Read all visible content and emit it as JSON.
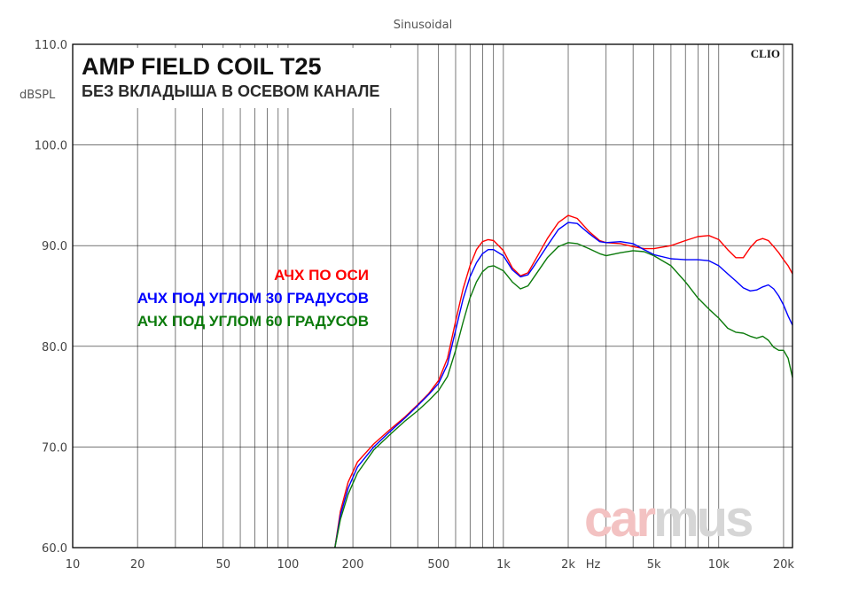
{
  "header": {
    "title": "Sinusoidal"
  },
  "overlay": {
    "title": "AMP FIELD COIL T25",
    "subtitle": "БЕЗ ВКЛАДЫША В ОСЕВОМ КАНАЛЕ",
    "brand_tag": "CLIO",
    "watermark_a": "car",
    "watermark_b": "mus",
    "watermark_colors": [
      "#f3c2c2",
      "#d6d6d6"
    ]
  },
  "chart_data": {
    "type": "line",
    "xscale": "log",
    "xlim": [
      10,
      22000
    ],
    "ylim": [
      60,
      110
    ],
    "ylabel": "dBSPL",
    "xlabel": "Hz",
    "grid": true,
    "legend_position": "center-left",
    "x_ticks": [
      {
        "v": 10,
        "label": "10"
      },
      {
        "v": 20,
        "label": "20"
      },
      {
        "v": 50,
        "label": "50"
      },
      {
        "v": 100,
        "label": "100"
      },
      {
        "v": 200,
        "label": "200"
      },
      {
        "v": 500,
        "label": "500"
      },
      {
        "v": 1000,
        "label": "1k"
      },
      {
        "v": 2000,
        "label": "2k"
      },
      {
        "v": 5000,
        "label": "5k"
      },
      {
        "v": 10000,
        "label": "10k"
      },
      {
        "v": 20000,
        "label": "20k"
      }
    ],
    "y_ticks": [
      {
        "v": 60,
        "label": "60.0"
      },
      {
        "v": 70,
        "label": "70.0"
      },
      {
        "v": 80,
        "label": "80.0"
      },
      {
        "v": 90,
        "label": "90.0"
      },
      {
        "v": 100,
        "label": "100.0"
      },
      {
        "v": 110,
        "label": "110.0"
      }
    ],
    "series": [
      {
        "name": "АЧХ ПО ОСИ",
        "color": "#ff0000",
        "points": [
          [
            165,
            60
          ],
          [
            175,
            63.6
          ],
          [
            190,
            66.5
          ],
          [
            210,
            68.5
          ],
          [
            250,
            70.3
          ],
          [
            300,
            71.8
          ],
          [
            350,
            73
          ],
          [
            400,
            74.2
          ],
          [
            450,
            75.3
          ],
          [
            500,
            76.6
          ],
          [
            550,
            78.8
          ],
          [
            600,
            82.5
          ],
          [
            650,
            85.7
          ],
          [
            700,
            88
          ],
          [
            750,
            89.6
          ],
          [
            800,
            90.4
          ],
          [
            850,
            90.6
          ],
          [
            900,
            90.5
          ],
          [
            1000,
            89.5
          ],
          [
            1100,
            87.8
          ],
          [
            1200,
            87
          ],
          [
            1300,
            87.3
          ],
          [
            1400,
            88.5
          ],
          [
            1600,
            90.7
          ],
          [
            1800,
            92.3
          ],
          [
            2000,
            93
          ],
          [
            2200,
            92.7
          ],
          [
            2500,
            91.4
          ],
          [
            2800,
            90.5
          ],
          [
            3000,
            90.3
          ],
          [
            3500,
            90.2
          ],
          [
            4000,
            89.9
          ],
          [
            4500,
            89.7
          ],
          [
            5000,
            89.7
          ],
          [
            6000,
            90
          ],
          [
            7000,
            90.5
          ],
          [
            8000,
            90.9
          ],
          [
            9000,
            91
          ],
          [
            10000,
            90.6
          ],
          [
            11000,
            89.6
          ],
          [
            12000,
            88.8
          ],
          [
            13000,
            88.8
          ],
          [
            14000,
            89.8
          ],
          [
            15000,
            90.5
          ],
          [
            16000,
            90.7
          ],
          [
            17000,
            90.5
          ],
          [
            18000,
            89.9
          ],
          [
            19000,
            89.3
          ],
          [
            20000,
            88.6
          ],
          [
            21000,
            88
          ],
          [
            22000,
            87.2
          ]
        ]
      },
      {
        "name": "АЧХ ПОД УГЛОМ 30 ГРАДУСОВ",
        "color": "#0000ff",
        "points": [
          [
            165,
            60
          ],
          [
            175,
            63.2
          ],
          [
            190,
            65.9
          ],
          [
            210,
            68
          ],
          [
            250,
            70
          ],
          [
            300,
            71.6
          ],
          [
            350,
            72.9
          ],
          [
            400,
            74.1
          ],
          [
            450,
            75.2
          ],
          [
            500,
            76.3
          ],
          [
            550,
            78.2
          ],
          [
            600,
            81.6
          ],
          [
            650,
            84.7
          ],
          [
            700,
            86.9
          ],
          [
            750,
            88.3
          ],
          [
            800,
            89.2
          ],
          [
            850,
            89.6
          ],
          [
            900,
            89.6
          ],
          [
            1000,
            89
          ],
          [
            1100,
            87.6
          ],
          [
            1200,
            86.9
          ],
          [
            1300,
            87.1
          ],
          [
            1400,
            88.1
          ],
          [
            1600,
            90
          ],
          [
            1800,
            91.6
          ],
          [
            2000,
            92.3
          ],
          [
            2200,
            92.2
          ],
          [
            2500,
            91.2
          ],
          [
            2800,
            90.4
          ],
          [
            3000,
            90.3
          ],
          [
            3500,
            90.4
          ],
          [
            4000,
            90.2
          ],
          [
            4500,
            89.6
          ],
          [
            5000,
            89.1
          ],
          [
            6000,
            88.7
          ],
          [
            7000,
            88.6
          ],
          [
            8000,
            88.6
          ],
          [
            9000,
            88.5
          ],
          [
            10000,
            88
          ],
          [
            11000,
            87.2
          ],
          [
            12000,
            86.5
          ],
          [
            13000,
            85.8
          ],
          [
            14000,
            85.5
          ],
          [
            15000,
            85.6
          ],
          [
            16000,
            85.9
          ],
          [
            17000,
            86.1
          ],
          [
            18000,
            85.7
          ],
          [
            19000,
            85
          ],
          [
            20000,
            84.1
          ],
          [
            21000,
            83
          ],
          [
            22000,
            82.1
          ]
        ]
      },
      {
        "name": "АЧХ ПОД УГЛОМ 60 ГРАДУСОВ",
        "color": "#0b7a0b",
        "points": [
          [
            165,
            60
          ],
          [
            175,
            62.8
          ],
          [
            190,
            65.3
          ],
          [
            210,
            67.4
          ],
          [
            250,
            69.7
          ],
          [
            300,
            71.3
          ],
          [
            350,
            72.6
          ],
          [
            400,
            73.6
          ],
          [
            450,
            74.6
          ],
          [
            500,
            75.6
          ],
          [
            550,
            77
          ],
          [
            600,
            79.6
          ],
          [
            650,
            82.4
          ],
          [
            700,
            84.8
          ],
          [
            750,
            86.4
          ],
          [
            800,
            87.4
          ],
          [
            850,
            87.9
          ],
          [
            900,
            88
          ],
          [
            1000,
            87.5
          ],
          [
            1100,
            86.4
          ],
          [
            1200,
            85.7
          ],
          [
            1300,
            86
          ],
          [
            1400,
            87
          ],
          [
            1600,
            88.8
          ],
          [
            1800,
            89.9
          ],
          [
            2000,
            90.3
          ],
          [
            2200,
            90.2
          ],
          [
            2500,
            89.7
          ],
          [
            2800,
            89.2
          ],
          [
            3000,
            89
          ],
          [
            3500,
            89.3
          ],
          [
            4000,
            89.5
          ],
          [
            4500,
            89.4
          ],
          [
            5000,
            89
          ],
          [
            6000,
            88
          ],
          [
            7000,
            86.4
          ],
          [
            8000,
            84.8
          ],
          [
            9000,
            83.7
          ],
          [
            10000,
            82.8
          ],
          [
            11000,
            81.8
          ],
          [
            12000,
            81.4
          ],
          [
            13000,
            81.3
          ],
          [
            14000,
            81
          ],
          [
            15000,
            80.8
          ],
          [
            16000,
            81
          ],
          [
            17000,
            80.6
          ],
          [
            18000,
            79.9
          ],
          [
            19000,
            79.6
          ],
          [
            20000,
            79.6
          ],
          [
            21000,
            78.8
          ],
          [
            22000,
            76.9
          ]
        ]
      }
    ]
  }
}
